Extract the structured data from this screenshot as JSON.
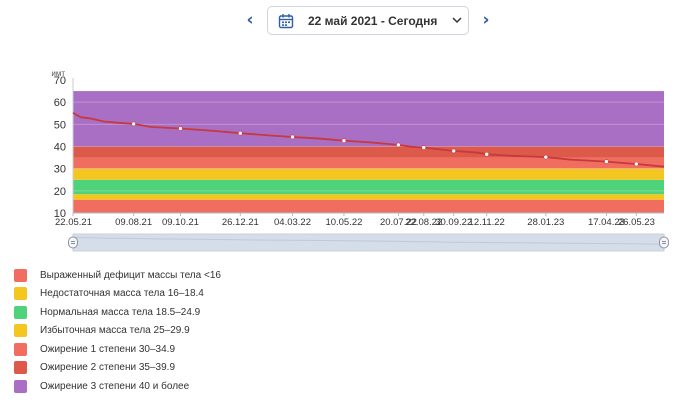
{
  "nav": {
    "date_label": "22 май 2021 - Сегодня",
    "prev_icon": "chevron-left-icon",
    "next_icon": "chevron-right-icon",
    "calendar_icon": "calendar-icon",
    "dropdown_icon": "chevron-down-icon"
  },
  "chart_data": {
    "type": "line",
    "ylabel": "имт",
    "ylim": [
      10,
      70
    ],
    "yticks": [
      "10",
      "20",
      "30",
      "40",
      "50",
      "60",
      "70"
    ],
    "x_tick_labels": [
      "22.05.21",
      "09.08.21",
      "09.10.21",
      "26.12.21",
      "04.03.22",
      "10.05.22",
      "20.07.22",
      "22.08.22",
      "30.09.22",
      "12.11.22",
      "28.01.23",
      "17.04.23",
      "26.05.23"
    ],
    "bands": [
      {
        "from": 10,
        "to": 16,
        "color": "#f06e60"
      },
      {
        "from": 16,
        "to": 18.5,
        "color": "#f3c71f"
      },
      {
        "from": 18.5,
        "to": 25,
        "color": "#4ed27a"
      },
      {
        "from": 25,
        "to": 30,
        "color": "#f3c71f"
      },
      {
        "from": 30,
        "to": 35,
        "color": "#f06e60"
      },
      {
        "from": 35,
        "to": 40,
        "color": "#dd5a4a"
      },
      {
        "from": 40,
        "to": 65,
        "color": "#a96fc4"
      }
    ],
    "series": [
      {
        "color": "#c8383c",
        "x": [
          "22.05.21",
          "01.06.21",
          "15.06.21",
          "01.07.21",
          "20.07.21",
          "09.08.21",
          "01.09.21",
          "09.10.21",
          "15.11.21",
          "26.12.21",
          "01.02.22",
          "04.03.22",
          "10.04.22",
          "10.05.22",
          "15.06.22",
          "20.07.22",
          "05.08.22",
          "22.08.22",
          "01.09.22",
          "30.09.22",
          "01.11.22",
          "12.11.22",
          "15.12.22",
          "28.01.23",
          "01.03.23",
          "17.04.23",
          "26.05.23",
          "01.07.23"
        ],
        "values": [
          55.2,
          53.2,
          52.6,
          51.3,
          50.7,
          50.2,
          48.8,
          48.1,
          47.2,
          46.0,
          45.0,
          44.3,
          43.5,
          42.6,
          41.8,
          40.7,
          39.9,
          39.5,
          39.1,
          38.0,
          37.2,
          36.5,
          35.8,
          35.2,
          34.1,
          33.2,
          32.1,
          30.9
        ],
        "markers": [
          "09.08.21",
          "09.10.21",
          "26.12.21",
          "04.03.22",
          "10.05.22",
          "20.07.22",
          "22.08.22",
          "30.09.22",
          "12.11.22",
          "28.01.23",
          "17.04.23",
          "26.05.23"
        ]
      }
    ],
    "grid": true,
    "legend": "bottom"
  },
  "legend": {
    "items": [
      {
        "label": "Выраженный дефицит массы тела <16",
        "color": "#f06e60"
      },
      {
        "label": "Недостаточная масса тела 16–18.4",
        "color": "#f3c71f"
      },
      {
        "label": "Нормальная масса тела 18.5–24.9",
        "color": "#4ed27a"
      },
      {
        "label": "Избыточная масса тела 25–29.9",
        "color": "#f3c71f"
      },
      {
        "label": "Ожирение 1 степени 30–34.9",
        "color": "#f06e60"
      },
      {
        "label": "Ожирение 2 степени 35–39.9",
        "color": "#dd5a4a"
      },
      {
        "label": "Ожирение 3 степени 40 и более",
        "color": "#a96fc4"
      }
    ]
  },
  "navigator": {
    "left_handle_icon": "drag-handle-icon",
    "right_handle_icon": "drag-handle-icon"
  }
}
